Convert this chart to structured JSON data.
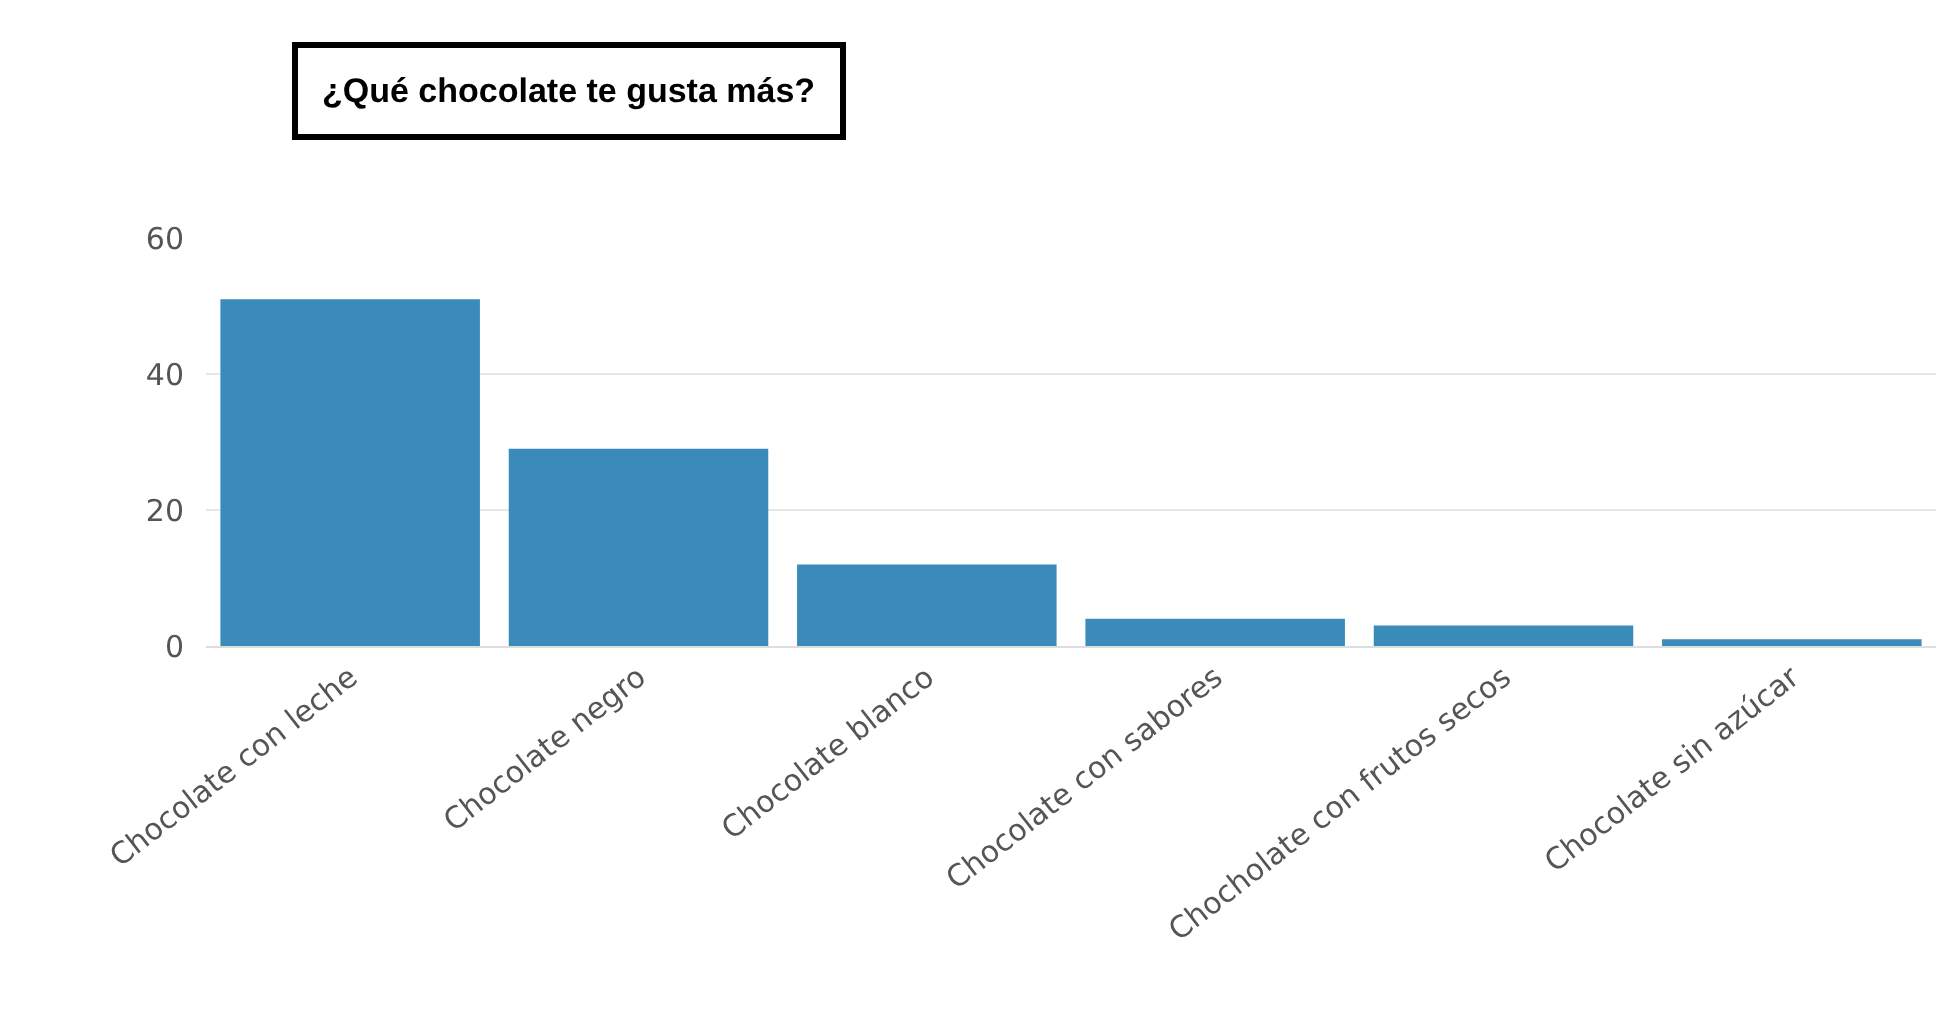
{
  "chart_data": {
    "type": "bar",
    "title": "¿Qué chocolate te gusta más?",
    "categories": [
      "Chocolate con leche",
      "Chocolate negro",
      "Chocolate blanco",
      "Chocolate con sabores",
      "Chocholate con frutos secos",
      "Chocolate sin azúcar"
    ],
    "values": [
      51,
      29,
      12,
      4,
      3,
      1
    ],
    "color": "#3a8aba",
    "ylim": [
      0,
      60
    ],
    "yticks": [
      0,
      20,
      40,
      60
    ],
    "grid": "y",
    "legend": false
  }
}
